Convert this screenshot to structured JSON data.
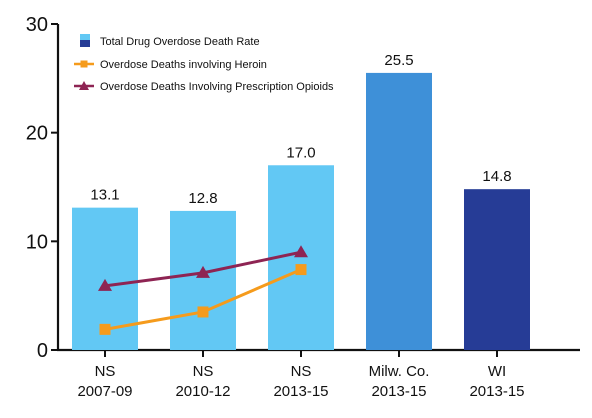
{
  "chart_data": {
    "type": "bar",
    "categories": [
      [
        "NS",
        "2007-09"
      ],
      [
        "NS",
        "2010-12"
      ],
      [
        "NS",
        "2013-15"
      ],
      [
        "Milw. Co.",
        "2013-15"
      ],
      [
        "WI",
        "2013-15"
      ]
    ],
    "bar_series": {
      "name": "Total Drug Overdose Death Rate",
      "values": [
        13.1,
        12.8,
        17.0,
        25.5,
        14.8
      ],
      "value_labels": [
        "13.1",
        "12.8",
        "17.0",
        "25.5",
        "14.8"
      ],
      "colors": [
        "#62c8f4",
        "#62c8f4",
        "#62c8f4",
        "#3e90d8",
        "#263c96"
      ]
    },
    "line_series": [
      {
        "name": "Overdose Deaths involving Heroin",
        "values": [
          1.9,
          3.5,
          7.4
        ],
        "color": "#f59b1c",
        "marker": "square"
      },
      {
        "name": "Overdose Deaths Involving Prescription Opioids",
        "values": [
          5.9,
          7.1,
          9.0
        ],
        "color": "#8e2453",
        "marker": "triangle"
      }
    ],
    "ylim": [
      0,
      30
    ],
    "yticks": [
      0,
      10,
      20,
      30
    ],
    "grid": false,
    "legend_position": "top-left",
    "title": "",
    "xlabel": "",
    "ylabel": ""
  }
}
